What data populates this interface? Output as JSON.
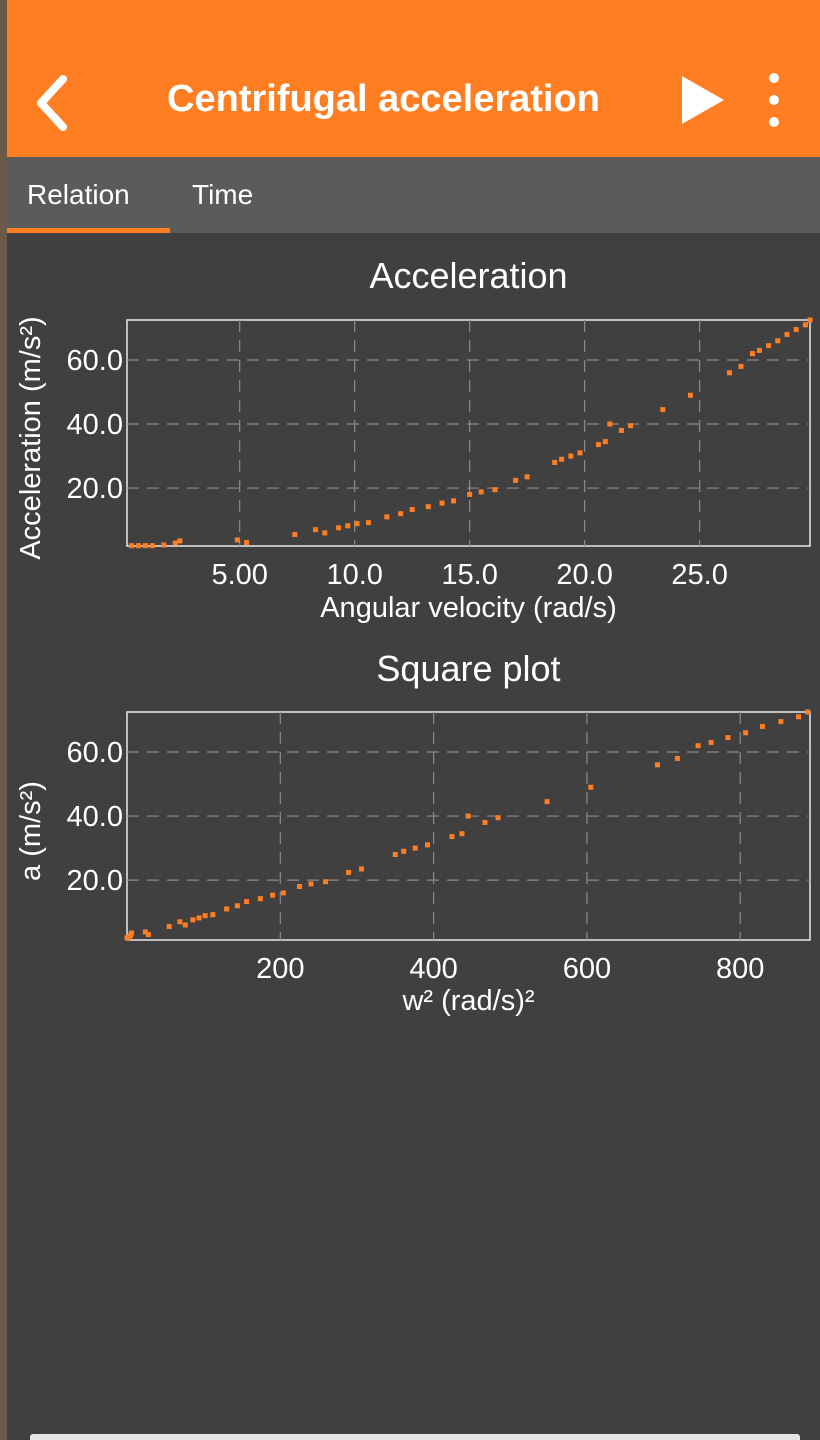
{
  "app_bar": {
    "title": "Centrifugal acceleration"
  },
  "tabs": [
    "Relation",
    "Time"
  ],
  "chart_data": [
    {
      "type": "scatter",
      "title": "Acceleration",
      "x_label": "Angular velocity (rad/s)",
      "y_label": "Acceleration (m/s²)",
      "color": "#ff7e22",
      "grid": true,
      "xlim": [
        0.1,
        29.8
      ],
      "ylim": [
        1.9,
        72.5
      ],
      "xticks": [
        {
          "value": 5,
          "label": "5.00"
        },
        {
          "value": 10,
          "label": "10.0"
        },
        {
          "value": 15,
          "label": "15.0"
        },
        {
          "value": 20,
          "label": "20.0"
        },
        {
          "value": 25,
          "label": "25.0"
        }
      ],
      "yticks": [
        {
          "value": 20,
          "label": "20.0"
        },
        {
          "value": 40,
          "label": "40.0"
        },
        {
          "value": 60,
          "label": "60.0"
        }
      ],
      "x": [
        0.3,
        0.6,
        0.9,
        1.2,
        1.7,
        2.2,
        2.4,
        4.9,
        5.3,
        7.4,
        8.3,
        8.7,
        9.3,
        9.7,
        10.1,
        10.6,
        11.4,
        12,
        12.5,
        13.2,
        13.8,
        14.3,
        15,
        15.5,
        16.1,
        17,
        17.5,
        18.7,
        19,
        19.4,
        19.8,
        20.6,
        20.9,
        21.1,
        21.6,
        22,
        23.4,
        24.6,
        26.3,
        26.8,
        27.3,
        27.6,
        28,
        28.4,
        28.8,
        29.2,
        29.6,
        29.8
      ],
      "values": [
        2,
        2,
        2,
        2,
        2.2,
        2.8,
        3.5,
        3.8,
        3,
        5.5,
        7,
        6,
        7.6,
        8.2,
        8.9,
        9.2,
        11,
        12,
        13.3,
        14.2,
        15.3,
        16,
        18,
        18.8,
        19.5,
        22.4,
        23.5,
        28,
        29,
        30,
        31,
        33.6,
        34.5,
        40,
        38,
        39.5,
        44.5,
        49,
        56,
        58,
        62,
        63,
        64.5,
        66,
        68,
        69.5,
        71,
        72.5
      ]
    },
    {
      "type": "scatter",
      "title": "Square plot",
      "x_label": "w² (rad/s)²",
      "y_label": "a (m/s²)",
      "color": "#ff7e22",
      "grid": true,
      "xlim": [
        0,
        891
      ],
      "ylim": [
        1.3,
        72.5
      ],
      "xticks": [
        200,
        400,
        600,
        800
      ],
      "yticks": [
        {
          "value": 20,
          "label": "20.0"
        },
        {
          "value": 40,
          "label": "40.0"
        },
        {
          "value": 60,
          "label": "60.0"
        }
      ],
      "x": [
        0.1,
        0.4,
        0.8,
        1.4,
        2.9,
        4.8,
        5.8,
        24,
        28,
        55,
        69,
        76,
        86,
        94,
        102,
        112,
        130,
        144,
        156,
        174,
        190,
        204,
        225,
        240,
        259,
        289,
        306,
        350,
        361,
        376,
        392,
        424,
        437,
        445,
        467,
        484,
        548,
        605,
        692,
        718,
        745,
        762,
        784,
        807,
        829,
        853,
        876,
        888
      ],
      "values": [
        2,
        2,
        2,
        2,
        2.2,
        2.8,
        3.5,
        3.8,
        3,
        5.5,
        7,
        6,
        7.6,
        8.2,
        8.9,
        9.2,
        11,
        12,
        13.3,
        14.2,
        15.3,
        16,
        18,
        18.8,
        19.5,
        22.4,
        23.5,
        28,
        29,
        30,
        31,
        33.6,
        34.5,
        40,
        38,
        39.5,
        44.5,
        49,
        56,
        58,
        62,
        63,
        64.5,
        66,
        68,
        69.5,
        71,
        72.5
      ]
    }
  ]
}
